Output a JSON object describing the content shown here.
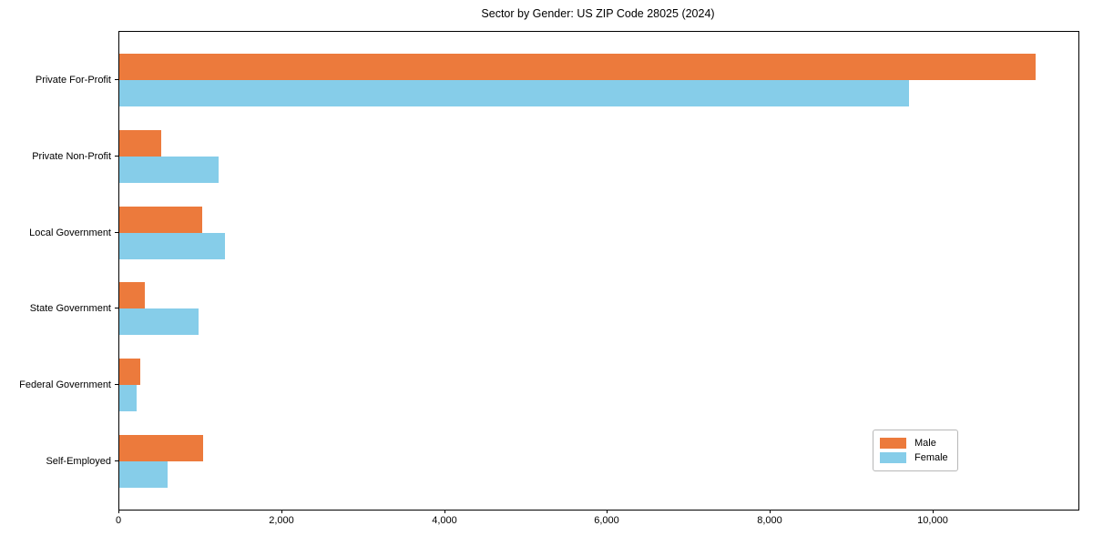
{
  "title": "Sector by Gender: US ZIP Code 28025 (2024)",
  "chart_data": {
    "type": "bar",
    "orientation": "horizontal",
    "title": "Sector by Gender: US ZIP Code 28025 (2024)",
    "categories": [
      "Private For-Profit",
      "Private Non-Profit",
      "Local Government",
      "State Government",
      "Federal Government",
      "Self-Employed"
    ],
    "series": [
      {
        "name": "Male",
        "color": "#ec7a3c",
        "values": [
          11250,
          520,
          1020,
          310,
          260,
          1030
        ]
      },
      {
        "name": "Female",
        "color": "#86cde9",
        "values": [
          9700,
          1220,
          1300,
          970,
          210,
          590
        ]
      }
    ],
    "xlabel": "",
    "ylabel": "",
    "xlim": [
      0,
      11780
    ],
    "xticks": [
      0,
      2000,
      4000,
      6000,
      8000,
      10000
    ],
    "xtick_labels": [
      "0",
      "2,000",
      "4,000",
      "6,000",
      "8,000",
      "10,000"
    ],
    "legend_position": "lower right",
    "grid": false
  }
}
